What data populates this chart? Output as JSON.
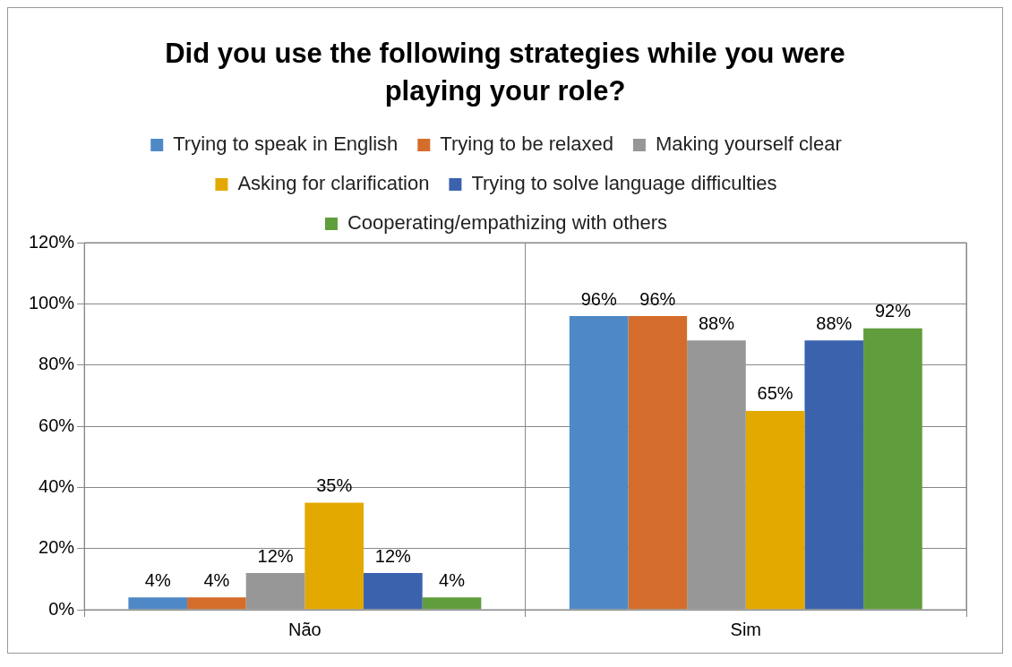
{
  "chart_data": {
    "type": "bar",
    "title": "Did you use the following strategies while you were playing your role?",
    "categories": [
      "Não",
      "Sim"
    ],
    "series": [
      {
        "name": "Trying to speak in English",
        "color": "#4f89c5",
        "values": [
          4,
          96
        ],
        "value_labels": [
          "4%",
          "96%"
        ]
      },
      {
        "name": "Trying to be relaxed",
        "color": "#d46d2b",
        "values": [
          4,
          96
        ],
        "value_labels": [
          "4%",
          "96%"
        ]
      },
      {
        "name": "Making yourself clear",
        "color": "#979797",
        "values": [
          12,
          88
        ],
        "value_labels": [
          "12%",
          "88%"
        ]
      },
      {
        "name": "Asking for clarification",
        "color": "#e3a900",
        "values": [
          35,
          65
        ],
        "value_labels": [
          "35%",
          "65%"
        ]
      },
      {
        "name": "Trying to solve language difficulties",
        "color": "#3b63ad",
        "values": [
          12,
          88
        ],
        "value_labels": [
          "12%",
          "88%"
        ]
      },
      {
        "name": "Cooperating/empathizing with others",
        "color": "#609d3c",
        "values": [
          4,
          92
        ],
        "value_labels": [
          "4%",
          "92%"
        ]
      }
    ],
    "ylim": [
      0,
      120
    ],
    "yticks": [
      {
        "value": 0,
        "label": "0%"
      },
      {
        "value": 20,
        "label": "20%"
      },
      {
        "value": 40,
        "label": "40%"
      },
      {
        "value": 60,
        "label": "60%"
      },
      {
        "value": 80,
        "label": "80%"
      },
      {
        "value": 100,
        "label": "100%"
      },
      {
        "value": 120,
        "label": "120%"
      }
    ],
    "grid": true,
    "legend": "top"
  }
}
